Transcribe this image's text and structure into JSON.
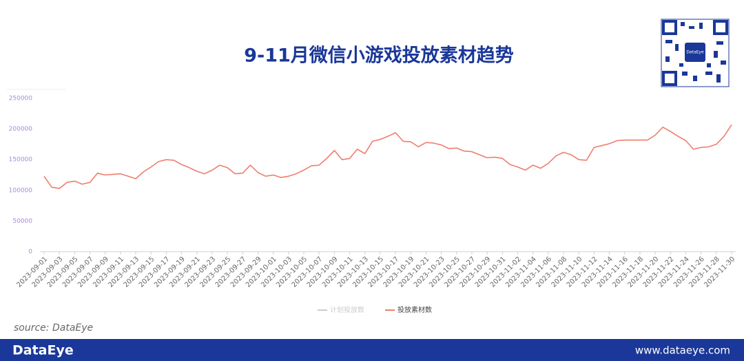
{
  "chart_data": {
    "type": "line",
    "title": "9-11月微信小游戏投放素材趋势",
    "categories": [
      "2023-09-01",
      null,
      "2023-09-03",
      null,
      "2023-09-05",
      null,
      "2023-09-07",
      null,
      "2023-09-09",
      null,
      "2023-09-11",
      null,
      "2023-09-13",
      null,
      "2023-09-15",
      null,
      "2023-09-17",
      null,
      "2023-09-19",
      null,
      "2023-09-21",
      null,
      "2023-09-23",
      null,
      "2023-09-25",
      null,
      "2023-09-27",
      null,
      "2023-09-29",
      null,
      "2023-10-01",
      null,
      "2023-10-03",
      null,
      "2023-10-05",
      null,
      "2023-10-07",
      null,
      "2023-10-09",
      null,
      "2023-10-11",
      null,
      "2023-10-13",
      null,
      "2023-10-15",
      null,
      "2023-10-17",
      null,
      "2023-10-19",
      null,
      "2023-10-21",
      null,
      "2023-10-23",
      null,
      "2023-10-25",
      null,
      "2023-10-27",
      null,
      "2023-10-29",
      null,
      "2023-10-31",
      null,
      "2023-11-02",
      null,
      "2023-11-04",
      null,
      "2023-11-06",
      null,
      "2023-11-08",
      null,
      "2023-11-10",
      null,
      "2023-11-12",
      null,
      "2023-11-14",
      null,
      "2023-11-16",
      null,
      "2023-11-18",
      null,
      "2023-11-20",
      null,
      "2023-11-22",
      null,
      "2023-11-24",
      null,
      "2023-11-26",
      null,
      "2023-11-28",
      null,
      "2023-11-30"
    ],
    "series": [
      {
        "name": "计划投放数",
        "color": "#cccccc",
        "hidden": true,
        "values": [
          null,
          null,
          null,
          null,
          null,
          null,
          null,
          null,
          null,
          null,
          null,
          null,
          null,
          null,
          null,
          null,
          null,
          null,
          null,
          null,
          null,
          null,
          null,
          null,
          null,
          null,
          null,
          null,
          null,
          null,
          null,
          null,
          null,
          null,
          null,
          null,
          null,
          null,
          null,
          null,
          null,
          null,
          null,
          null,
          null,
          null,
          null,
          null,
          null,
          null,
          null,
          null,
          null,
          null,
          null,
          null,
          null,
          null,
          null,
          null,
          null,
          null,
          null,
          null,
          null,
          null,
          null,
          null,
          null,
          null,
          null,
          null,
          null,
          null,
          null,
          null,
          null,
          null,
          null,
          null,
          null,
          null,
          null,
          null,
          null,
          null,
          null,
          null,
          null,
          null,
          null
        ]
      },
      {
        "name": "投放素材数",
        "color": "#f07c6c",
        "values": [
          123000,
          105000,
          103000,
          113000,
          115000,
          110000,
          113000,
          128000,
          125000,
          126000,
          127000,
          123000,
          119000,
          130000,
          138000,
          147000,
          150000,
          149000,
          142000,
          137000,
          131000,
          127000,
          133000,
          141000,
          137000,
          127000,
          128000,
          141000,
          129000,
          123000,
          125000,
          121000,
          123000,
          127000,
          133000,
          140000,
          141000,
          152000,
          165000,
          150000,
          152000,
          167000,
          160000,
          180000,
          183000,
          188000,
          194000,
          180000,
          179000,
          171000,
          178000,
          177000,
          174000,
          168000,
          169000,
          164000,
          163000,
          158000,
          153000,
          154000,
          152000,
          142000,
          138000,
          133000,
          141000,
          136000,
          144000,
          156000,
          162000,
          158000,
          150000,
          149000,
          170000,
          173000,
          176000,
          181000,
          182000,
          182000,
          182000,
          182000,
          190000,
          203000,
          196000,
          188000,
          181000,
          167000,
          170000,
          171000,
          175000,
          188000,
          207000
        ]
      }
    ],
    "ylim": [
      0,
      250000
    ],
    "yticks": [
      0,
      50000,
      100000,
      150000,
      200000,
      250000
    ],
    "grid": false
  },
  "source": "source: DataEye",
  "qr_label": "DataEye",
  "footer": {
    "brand": "DataEye",
    "url": "www.dataeye.com"
  }
}
